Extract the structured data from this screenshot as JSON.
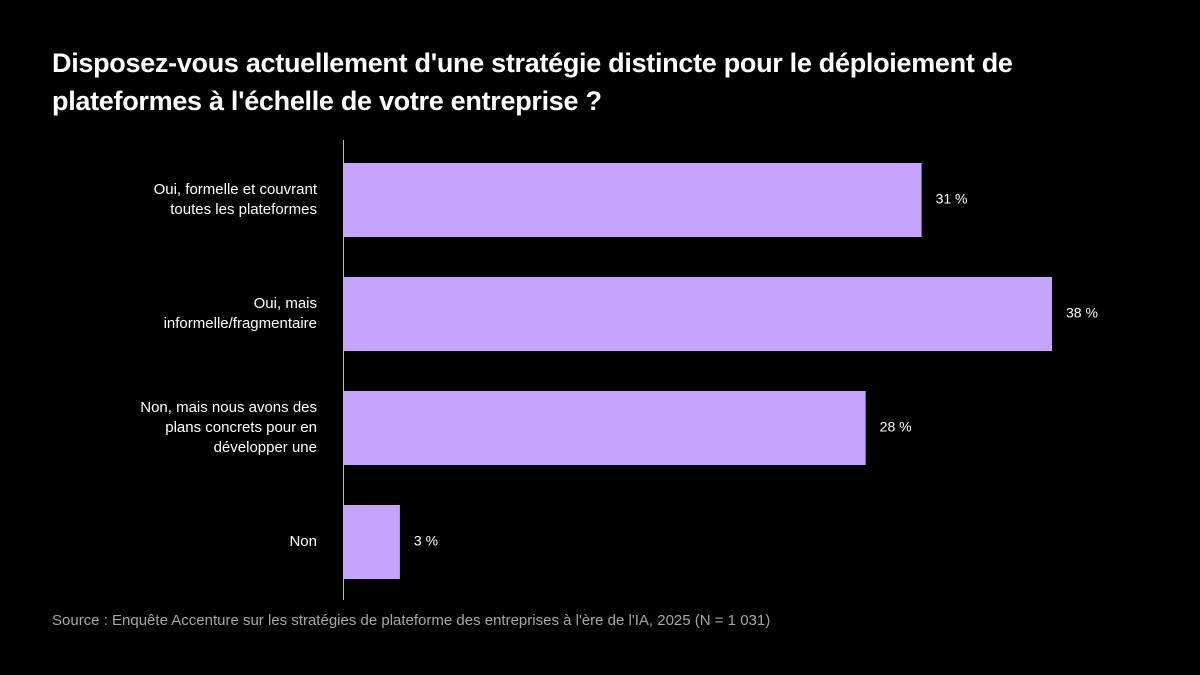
{
  "chart_data": {
    "type": "bar",
    "orientation": "horizontal",
    "title": "Disposez-vous actuellement d'une stratégie distincte pour le déploiement de plateformes à l'échelle de votre entreprise ?",
    "categories": [
      "Oui, formelle et couvrant toutes les plateformes",
      "Oui, mais informelle/fragmentaire",
      "Non, mais nous avons des plans concrets pour en développer une",
      "Non"
    ],
    "values": [
      31,
      38,
      28,
      3
    ],
    "value_labels": [
      "31 %",
      "38 %",
      "28 %",
      "3 %"
    ],
    "color": "#c4a4fc",
    "source": "Source : Enquête Accenture sur les stratégies de plateforme des entreprises à l'ère de l'IA, 2025 (N = 1 031)"
  }
}
